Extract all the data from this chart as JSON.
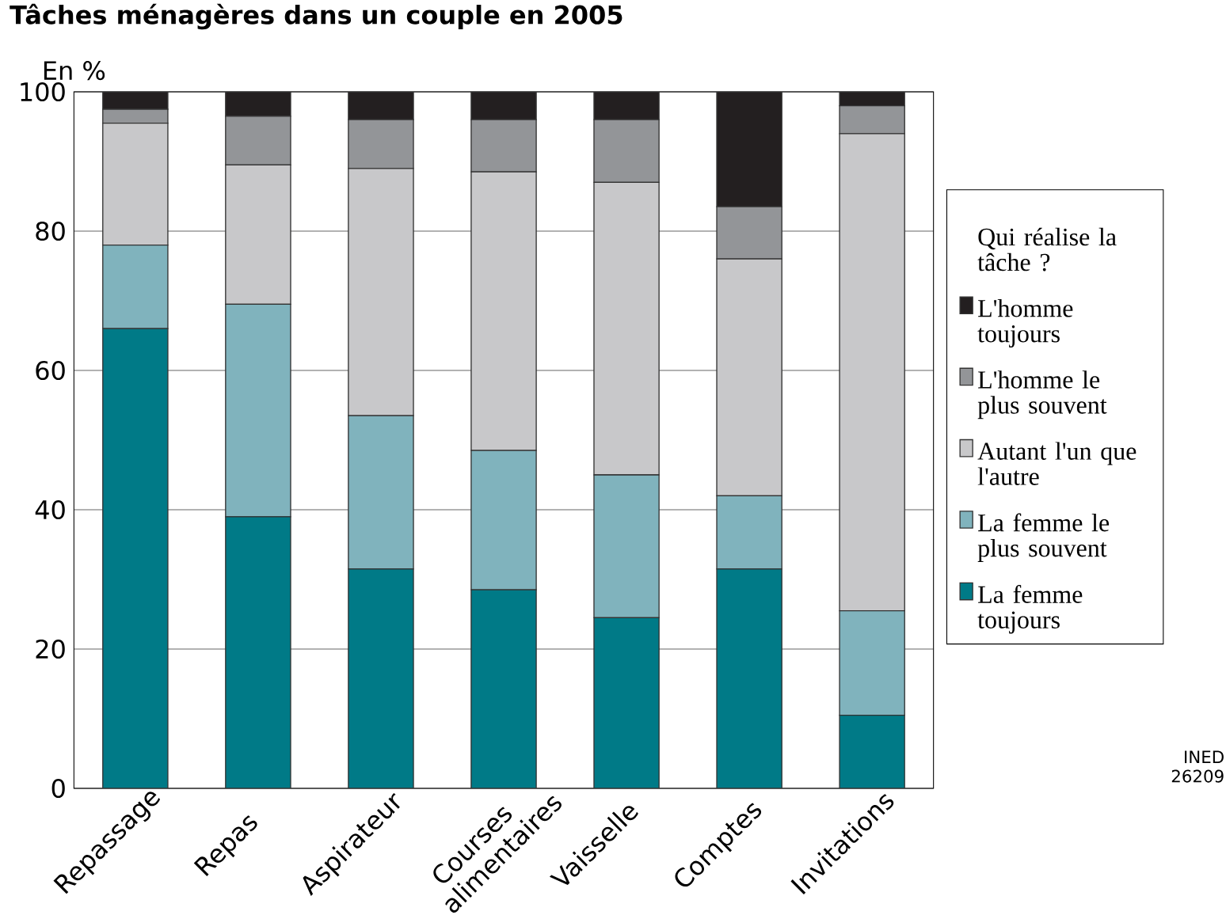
{
  "chart_data": {
    "type": "bar",
    "stacked": true,
    "title": "Tâches ménagères dans un couple en 2005",
    "ylabel": "En %",
    "legend_title": "Qui réalise la tâche ?",
    "categories": [
      "Repassage",
      "Repas",
      "Aspirateur",
      "Courses alimentaires",
      "Vaisselle",
      "Comptes",
      "Invitations"
    ],
    "series": [
      {
        "name": "La femme toujours",
        "color": "#007a87",
        "values": [
          66,
          39,
          31.5,
          28.5,
          24.5,
          31.5,
          10.5
        ]
      },
      {
        "name": "La femme le plus souvent",
        "color": "#80b3bd",
        "values": [
          12,
          30.5,
          22,
          20,
          20.5,
          10.5,
          15
        ]
      },
      {
        "name": "Autant l'un que l'autre",
        "color": "#c8c8ca",
        "values": [
          17.5,
          20,
          35.5,
          40,
          42,
          34,
          68.5
        ]
      },
      {
        "name": "L'homme le plus souvent",
        "color": "#939598",
        "values": [
          2,
          7,
          7,
          7.5,
          9,
          7.5,
          4
        ]
      },
      {
        "name": "L'homme toujours",
        "color": "#231f20",
        "values": [
          2.5,
          3.5,
          4,
          4,
          4,
          16.5,
          2
        ]
      }
    ],
    "ylim": [
      0,
      100
    ],
    "yticks": [
      0,
      20,
      40,
      60,
      80,
      100
    ],
    "grid": "y",
    "legend": "right",
    "annotations": [
      "INED",
      "26209"
    ]
  }
}
